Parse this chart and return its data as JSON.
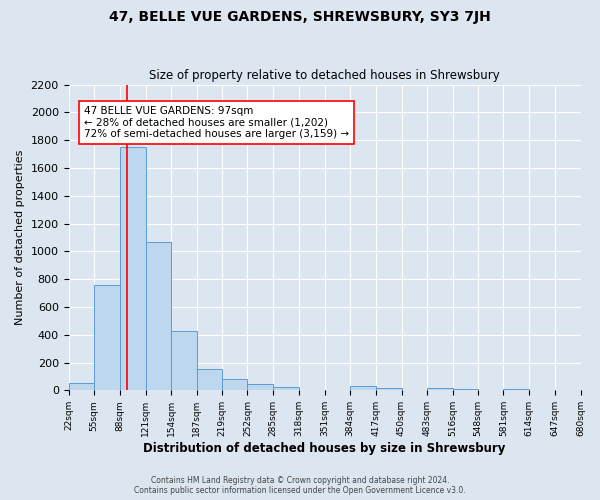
{
  "title": "47, BELLE VUE GARDENS, SHREWSBURY, SY3 7JH",
  "subtitle": "Size of property relative to detached houses in Shrewsbury",
  "xlabel": "Distribution of detached houses by size in Shrewsbury",
  "ylabel": "Number of detached properties",
  "bar_color": "#bdd7ee",
  "bar_edge_color": "#5b9bd5",
  "background_color": "#dce6f1",
  "plot_bg_color": "#dce6f1",
  "grid_color": "#ffffff",
  "red_line_x": 97,
  "annotation_title": "47 BELLE VUE GARDENS: 97sqm",
  "annotation_line1": "← 28% of detached houses are smaller (1,202)",
  "annotation_line2": "72% of semi-detached houses are larger (3,159) →",
  "footer_line1": "Contains HM Land Registry data © Crown copyright and database right 2024.",
  "footer_line2": "Contains public sector information licensed under the Open Government Licence v3.0.",
  "bin_edges": [
    22,
    55,
    88,
    121,
    154,
    187,
    219,
    252,
    285,
    318,
    351,
    384,
    417,
    450,
    483,
    516,
    548,
    581,
    614,
    647,
    680
  ],
  "bin_labels": [
    "22sqm",
    "55sqm",
    "88sqm",
    "121sqm",
    "154sqm",
    "187sqm",
    "219sqm",
    "252sqm",
    "285sqm",
    "318sqm",
    "351sqm",
    "384sqm",
    "417sqm",
    "450sqm",
    "483sqm",
    "516sqm",
    "548sqm",
    "581sqm",
    "614sqm",
    "647sqm",
    "680sqm"
  ],
  "counts": [
    50,
    760,
    1750,
    1070,
    430,
    155,
    85,
    45,
    25,
    0,
    0,
    30,
    20,
    0,
    15,
    10,
    0,
    10,
    0,
    0
  ],
  "ylim": [
    0,
    2200
  ],
  "yticks": [
    0,
    200,
    400,
    600,
    800,
    1000,
    1200,
    1400,
    1600,
    1800,
    2000,
    2200
  ]
}
